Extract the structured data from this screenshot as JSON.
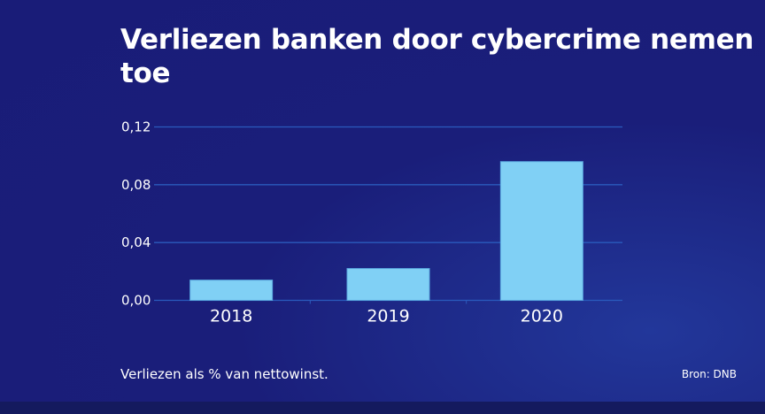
{
  "chart_data": {
    "type": "bar",
    "title": "Verliezen banken door cybercrime nemen toe",
    "categories": [
      "2018",
      "2019",
      "2020"
    ],
    "values": [
      0.014,
      0.022,
      0.096
    ],
    "ylim": [
      0,
      0.12
    ],
    "yticks": [
      "0,00",
      "0,04",
      "0,08",
      "0,12"
    ],
    "ytick_values": [
      0,
      0.04,
      0.08,
      0.12
    ],
    "grid": true,
    "xlabel": "",
    "ylabel": "",
    "bar_color": "#80d0f5",
    "grid_color": "#2a5bbd",
    "background_color": "#1a1e7a"
  },
  "footnote": "Verliezen als % van nettowinst.",
  "source": "Bron: DNB"
}
